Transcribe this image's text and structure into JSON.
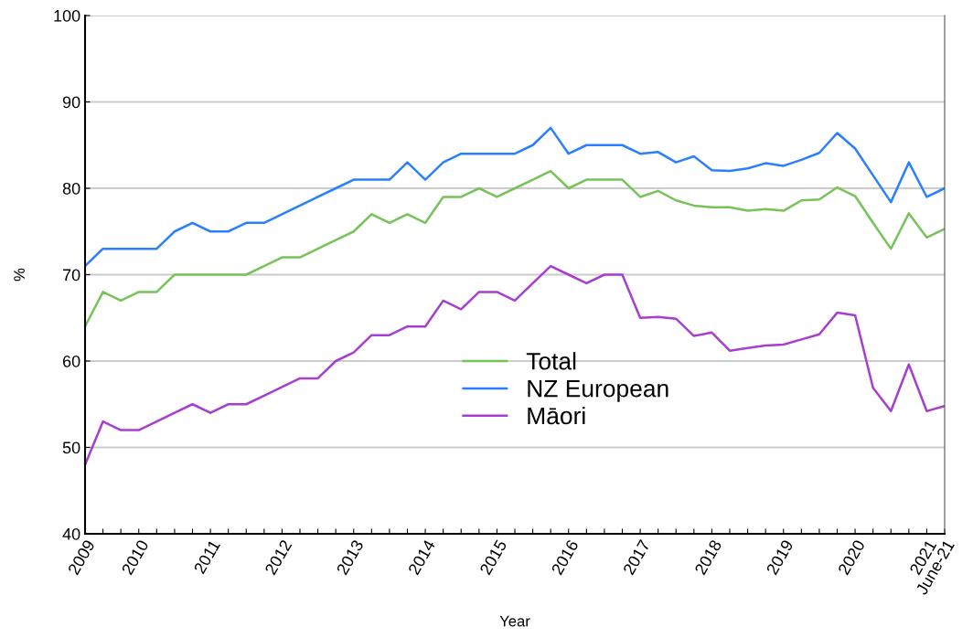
{
  "chart_data": {
    "type": "line",
    "xlabel": "Year",
    "ylabel": "%",
    "categories": [
      "2009",
      null,
      null,
      "2010",
      null,
      null,
      null,
      "2011",
      null,
      null,
      null,
      "2012",
      null,
      null,
      null,
      "2013",
      null,
      null,
      null,
      "2014",
      null,
      null,
      null,
      "2015",
      null,
      null,
      null,
      "2016",
      null,
      null,
      null,
      "2017",
      null,
      null,
      null,
      "2018",
      null,
      null,
      null,
      "2019",
      null,
      null,
      null,
      "2020",
      null,
      null,
      null,
      "2021",
      "June-21"
    ],
    "series": [
      {
        "name": "Total",
        "color": "#77c35a",
        "values": [
          64,
          68,
          67,
          68,
          68,
          70,
          70,
          70,
          70,
          70,
          71,
          72,
          72,
          73,
          74,
          75,
          77,
          76,
          77,
          76,
          79,
          79,
          80,
          79,
          80,
          81,
          82,
          80,
          81,
          81,
          81,
          79,
          79.7,
          78.6,
          78.0,
          77.8,
          77.8,
          77.4,
          77.6,
          77.4,
          78.6,
          78.7,
          80.1,
          79.1,
          76.0,
          73.0,
          77.1,
          74.3,
          75.3
        ]
      },
      {
        "name": "NZ European",
        "color": "#2a7fff",
        "values": [
          71,
          73,
          73,
          73,
          73,
          75,
          76,
          75,
          75,
          76,
          76,
          77,
          78,
          79,
          80,
          81,
          81,
          81,
          83,
          81,
          83,
          84,
          84,
          84,
          84,
          85,
          87,
          84,
          85,
          85,
          85,
          84,
          84.2,
          83.0,
          83.7,
          82.1,
          82.0,
          82.3,
          82.9,
          82.6,
          83.3,
          84.1,
          86.4,
          84.6,
          81.5,
          78.4,
          83.0,
          79.0,
          80.0
        ]
      },
      {
        "name": "Māori",
        "color": "#a63fcf",
        "values": [
          48,
          53,
          52,
          52,
          53,
          54,
          55,
          54,
          55,
          55,
          56,
          57,
          58,
          58,
          60,
          61,
          63,
          63,
          64,
          64,
          67,
          66,
          68,
          68,
          67,
          69,
          71,
          70,
          69,
          70,
          70,
          65,
          65.1,
          64.9,
          62.9,
          63.3,
          61.2,
          61.5,
          61.8,
          61.9,
          62.5,
          63.1,
          65.6,
          65.3,
          56.9,
          54.2,
          59.6,
          54.2,
          54.8
        ]
      }
    ],
    "ylim": [
      40,
      100
    ],
    "yticks": [
      40,
      50,
      60,
      70,
      80,
      90,
      100
    ],
    "grid": "y",
    "legend": "bottom"
  }
}
